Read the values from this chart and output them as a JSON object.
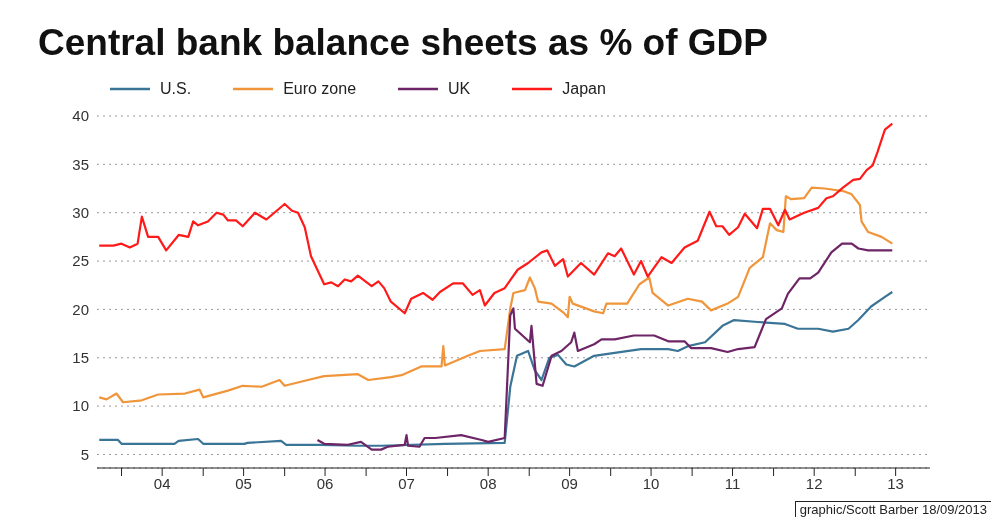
{
  "chart_data": {
    "type": "line",
    "title": "Central bank balance sheets as % of GDP",
    "annotations": [
      "graphic/Scott Barber 18/09/2013"
    ],
    "xlim": [
      "2003-09-13",
      "2013-12-02"
    ],
    "xticks": [
      {
        "value": "2004-01-01",
        "label": null
      },
      {
        "value": "2004-07-01",
        "label": "04"
      },
      {
        "value": "2005-01-01",
        "label": null
      },
      {
        "value": "2005-07-01",
        "label": "05"
      },
      {
        "value": "2006-01-01",
        "label": null
      },
      {
        "value": "2006-07-01",
        "label": "06"
      },
      {
        "value": "2007-01-01",
        "label": null
      },
      {
        "value": "2007-07-01",
        "label": "07"
      },
      {
        "value": "2008-01-01",
        "label": null
      },
      {
        "value": "2008-07-01",
        "label": "08"
      },
      {
        "value": "2009-01-01",
        "label": null
      },
      {
        "value": "2009-07-01",
        "label": "09"
      },
      {
        "value": "2010-01-01",
        "label": null
      },
      {
        "value": "2010-07-01",
        "label": "10"
      },
      {
        "value": "2011-01-01",
        "label": null
      },
      {
        "value": "2011-07-01",
        "label": "11"
      },
      {
        "value": "2012-01-01",
        "label": null
      },
      {
        "value": "2012-07-01",
        "label": "12"
      },
      {
        "value": "2013-01-01",
        "label": null
      },
      {
        "value": "2013-07-01",
        "label": "13"
      }
    ],
    "ylim": [
      3.6,
      40
    ],
    "yticks": [
      5,
      10,
      15,
      20,
      25,
      30,
      35,
      40
    ],
    "grid": "y",
    "legend": "top",
    "series": [
      {
        "name": "U.S.",
        "color": "#3a7496",
        "x": [
          "2003-09-23",
          "2003-12-16",
          "2004-01-01",
          "2004-08-25",
          "2004-09-13",
          "2004-12-09",
          "2005-01-01",
          "2005-07-04",
          "2005-07-19",
          "2005-12-16",
          "2006-01-08",
          "2006-06-09",
          "2006-11-25",
          "2007-03-09",
          "2007-12-20",
          "2008-09-13",
          "2008-10-08",
          "2008-11-07",
          "2008-12-27",
          "2009-01-26",
          "2009-02-25",
          "2009-04-01",
          "2009-05-10",
          "2009-06-16",
          "2009-07-22",
          "2009-10-19",
          "2010-01-19",
          "2010-05-17",
          "2010-09-16",
          "2010-10-29",
          "2010-12-13",
          "2011-02-28",
          "2011-05-17",
          "2011-07-08",
          "2011-10-22",
          "2012-02-21",
          "2012-04-19",
          "2012-07-19",
          "2012-09-23",
          "2012-12-02",
          "2013-01-15",
          "2013-03-13",
          "2013-05-14",
          "2013-06-16"
        ],
        "values": [
          6.5,
          6.5,
          6.1,
          6.1,
          6.4,
          6.6,
          6.1,
          6.1,
          6.2,
          6.4,
          6.0,
          6.0,
          5.9,
          5.9,
          6.1,
          6.2,
          12.0,
          15.2,
          15.7,
          13.7,
          12.7,
          15.0,
          15.3,
          14.3,
          14.1,
          15.2,
          15.5,
          15.9,
          15.9,
          15.7,
          16.2,
          16.6,
          18.3,
          18.9,
          18.7,
          18.5,
          18.0,
          18.0,
          17.7,
          18.0,
          18.9,
          20.3,
          21.3,
          21.8
        ]
      },
      {
        "name": "Euro zone",
        "color": "#f0953a",
        "x": [
          "2003-09-23",
          "2003-10-26",
          "2003-12-09",
          "2004-01-08",
          "2004-04-01",
          "2004-06-13",
          "2004-10-11",
          "2004-12-16",
          "2005-01-01",
          "2005-04-22",
          "2005-06-27",
          "2005-09-20",
          "2005-12-09",
          "2006-01-01",
          "2006-04-15",
          "2006-06-27",
          "2006-11-25",
          "2007-01-11",
          "2007-04-22",
          "2007-06-09",
          "2007-09-05",
          "2007-12-05",
          "2007-12-13",
          "2007-12-20",
          "2008-04-01",
          "2008-05-25",
          "2008-09-13",
          "2008-10-08",
          "2008-10-22",
          "2008-12-13",
          "2009-01-04",
          "2009-01-26",
          "2009-02-10",
          "2009-04-11",
          "2009-06-02",
          "2009-06-23",
          "2009-07-01",
          "2009-07-15",
          "2009-10-19",
          "2009-11-28",
          "2009-12-13",
          "2010-03-16",
          "2010-05-10",
          "2010-06-23",
          "2010-07-08",
          "2010-09-16",
          "2010-12-13",
          "2011-02-14",
          "2011-03-27",
          "2011-06-09",
          "2011-07-26",
          "2011-09-16",
          "2011-11-14",
          "2011-12-16",
          "2012-01-15",
          "2012-02-14",
          "2012-02-25",
          "2012-03-20",
          "2012-05-17",
          "2012-06-20",
          "2012-08-17",
          "2012-11-14",
          "2012-12-16",
          "2013-01-22",
          "2013-01-29",
          "2013-02-28",
          "2013-04-29",
          "2013-06-16"
        ],
        "values": [
          10.9,
          10.7,
          11.3,
          10.4,
          10.6,
          11.2,
          11.3,
          11.7,
          10.9,
          11.6,
          12.1,
          12.0,
          12.7,
          12.1,
          12.7,
          13.1,
          13.3,
          12.7,
          13.0,
          13.2,
          14.1,
          14.1,
          16.2,
          14.2,
          15.2,
          15.7,
          15.9,
          20.1,
          21.7,
          22.0,
          23.3,
          22.2,
          20.8,
          20.6,
          19.7,
          19.2,
          21.3,
          20.6,
          19.8,
          19.6,
          20.6,
          20.6,
          22.6,
          23.3,
          21.7,
          20.4,
          21.1,
          20.8,
          19.9,
          20.6,
          21.3,
          24.3,
          25.4,
          28.9,
          28.2,
          28.0,
          31.7,
          31.4,
          31.5,
          32.6,
          32.5,
          32.2,
          31.9,
          30.8,
          29.1,
          28.0,
          27.5,
          26.8
        ]
      },
      {
        "name": "UK",
        "color": "#6e2567",
        "x": [
          "2006-05-28",
          "2006-06-27",
          "2006-10-11",
          "2006-12-09",
          "2007-01-26",
          "2007-03-09",
          "2007-04-08",
          "2007-06-23",
          "2007-07-01",
          "2007-07-08",
          "2007-08-28",
          "2007-09-20",
          "2007-11-07",
          "2008-03-02",
          "2008-06-02",
          "2008-07-01",
          "2008-09-13",
          "2008-10-08",
          "2008-10-22",
          "2008-10-29",
          "2009-01-04",
          "2009-01-11",
          "2009-02-03",
          "2009-03-02",
          "2009-04-11",
          "2009-05-25",
          "2009-07-08",
          "2009-07-22",
          "2009-08-07",
          "2009-10-19",
          "2009-11-21",
          "2010-01-19",
          "2010-04-15",
          "2010-07-15",
          "2010-09-16",
          "2010-11-28",
          "2010-12-27",
          "2011-03-27",
          "2011-06-09",
          "2011-07-26",
          "2011-10-08",
          "2011-11-28",
          "2012-02-07",
          "2012-03-05",
          "2012-04-26",
          "2012-06-13",
          "2012-07-19",
          "2012-09-16",
          "2012-11-03",
          "2012-12-16",
          "2013-01-15",
          "2013-02-28",
          "2013-06-16"
        ],
        "values": [
          6.5,
          6.1,
          6.0,
          6.3,
          5.5,
          5.5,
          5.8,
          6.0,
          7.0,
          5.9,
          5.8,
          6.7,
          6.7,
          7.0,
          6.5,
          6.3,
          6.7,
          19.4,
          20.1,
          18.0,
          16.6,
          18.3,
          12.3,
          12.1,
          15.2,
          15.7,
          16.6,
          17.6,
          15.7,
          16.4,
          16.9,
          16.9,
          17.3,
          17.3,
          16.7,
          16.7,
          16.0,
          16.0,
          15.6,
          15.9,
          16.1,
          19.0,
          20.1,
          21.6,
          23.2,
          23.2,
          23.8,
          25.9,
          26.8,
          26.8,
          26.3,
          26.1,
          26.1
        ]
      },
      {
        "name": "Japan",
        "color": "#ff1a1a",
        "x": [
          "2003-09-23",
          "2003-11-25",
          "2004-01-01",
          "2004-02-07",
          "2004-03-13",
          "2004-04-01",
          "2004-04-29",
          "2004-06-13",
          "2004-07-19",
          "2004-09-13",
          "2004-10-26",
          "2004-11-17",
          "2004-12-09",
          "2005-01-22",
          "2005-03-02",
          "2005-04-01",
          "2005-04-22",
          "2005-05-28",
          "2005-06-27",
          "2005-08-21",
          "2005-10-11",
          "2006-01-01",
          "2006-02-03",
          "2006-03-02",
          "2006-04-01",
          "2006-04-29",
          "2006-06-27",
          "2006-07-29",
          "2006-08-28",
          "2006-09-27",
          "2006-10-26",
          "2006-11-25",
          "2007-01-26",
          "2007-02-25",
          "2007-03-23",
          "2007-04-22",
          "2007-06-23",
          "2007-07-22",
          "2007-09-13",
          "2007-10-26",
          "2007-11-28",
          "2008-01-26",
          "2008-03-09",
          "2008-04-22",
          "2008-05-25",
          "2008-06-16",
          "2008-07-29",
          "2008-09-13",
          "2008-11-10",
          "2008-12-27",
          "2009-02-25",
          "2009-03-23",
          "2009-04-26",
          "2009-06-02",
          "2009-06-23",
          "2009-08-21",
          "2009-10-19",
          "2009-12-20",
          "2010-01-19",
          "2010-02-17",
          "2010-04-15",
          "2010-05-17",
          "2010-06-16",
          "2010-08-17",
          "2010-10-01",
          "2010-11-28",
          "2011-01-26",
          "2011-03-20",
          "2011-04-19",
          "2011-05-17",
          "2011-06-16",
          "2011-07-26",
          "2011-08-25",
          "2011-10-19",
          "2011-11-14",
          "2011-12-16",
          "2012-01-22",
          "2012-02-21",
          "2012-03-13",
          "2012-05-17",
          "2012-07-19",
          "2012-08-25",
          "2012-09-23",
          "2012-11-07",
          "2012-12-23",
          "2013-01-22",
          "2013-02-21",
          "2013-03-20",
          "2013-04-11",
          "2013-05-14",
          "2013-06-16"
        ],
        "values": [
          26.6,
          26.6,
          26.8,
          26.4,
          26.8,
          29.6,
          27.5,
          27.5,
          26.1,
          27.7,
          27.5,
          29.1,
          28.7,
          29.1,
          30.0,
          29.8,
          29.2,
          29.2,
          28.6,
          30.0,
          29.3,
          30.9,
          30.2,
          30.0,
          28.5,
          25.5,
          22.6,
          22.8,
          22.4,
          23.1,
          22.9,
          23.5,
          22.4,
          22.9,
          22.2,
          20.8,
          19.6,
          21.1,
          21.7,
          21.0,
          21.8,
          22.7,
          22.7,
          21.5,
          22.0,
          20.4,
          21.7,
          22.2,
          24.1,
          24.8,
          25.9,
          26.1,
          24.5,
          25.2,
          23.4,
          24.8,
          23.6,
          25.8,
          25.5,
          26.3,
          23.6,
          25.0,
          23.4,
          25.4,
          24.8,
          26.4,
          27.1,
          30.1,
          28.6,
          28.6,
          27.7,
          28.5,
          29.9,
          28.4,
          30.4,
          30.4,
          28.7,
          30.3,
          29.3,
          30.0,
          30.5,
          31.5,
          31.7,
          32.6,
          33.4,
          33.5,
          34.4,
          34.9,
          36.3,
          38.6,
          39.2
        ]
      }
    ]
  }
}
